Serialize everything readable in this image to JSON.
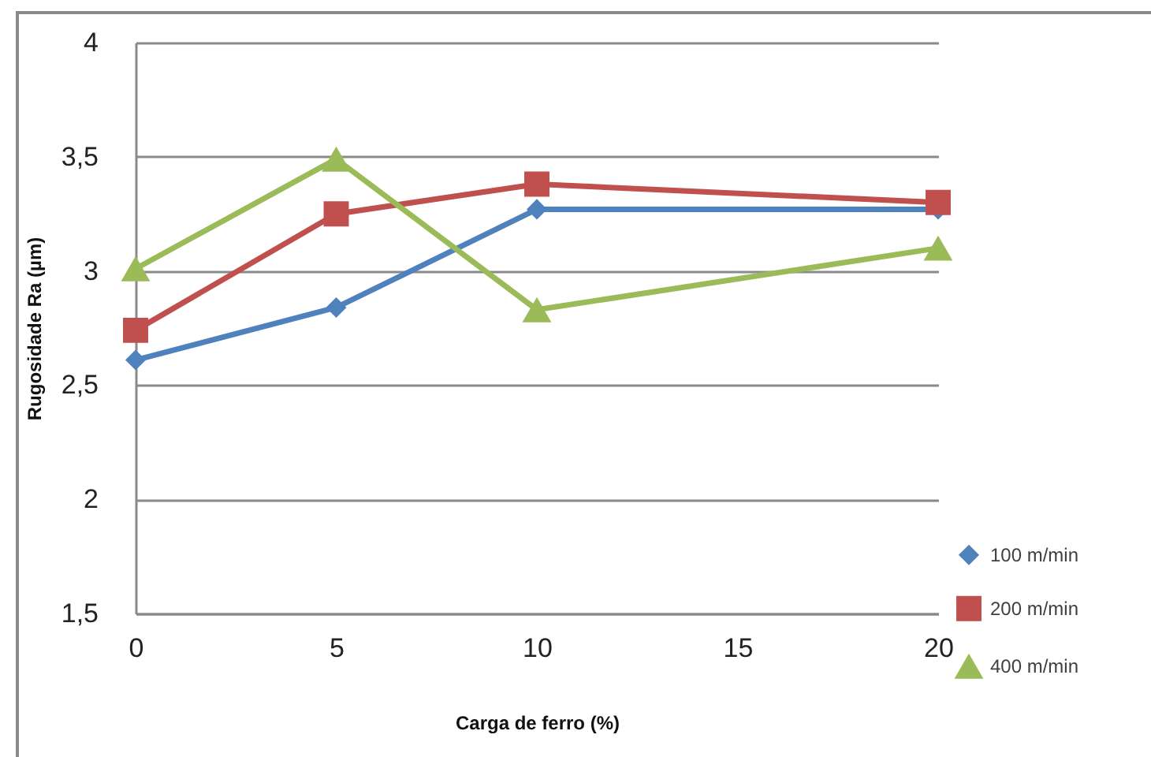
{
  "chart_data": {
    "type": "line",
    "xlabel": "Carga de ferro (%)",
    "ylabel": "Rugosidade Ra (µm)",
    "x": [
      0,
      5,
      10,
      20
    ],
    "xlim": [
      0,
      20
    ],
    "xticks": [
      0,
      5,
      10,
      15,
      20
    ],
    "ylim": [
      1.5,
      4
    ],
    "yticks": [
      {
        "value": 1.5,
        "label": "1,5"
      },
      2,
      {
        "value": 2.5,
        "label": "2,5"
      },
      3,
      {
        "value": 3.5,
        "label": "3,5"
      },
      4
    ],
    "grid": "y",
    "legend": "right",
    "series": [
      {
        "name": "100 m/min",
        "color": "#4f81bd",
        "marker": "diamond",
        "values": [
          2.61,
          2.84,
          3.27,
          3.27
        ]
      },
      {
        "name": "200 m/min",
        "color": "#c0504d",
        "marker": "square",
        "values": [
          2.74,
          3.25,
          3.38,
          3.3
        ]
      },
      {
        "name": "400 m/min",
        "color": "#9bbb59",
        "marker": "triangle",
        "values": [
          3.01,
          3.49,
          2.83,
          3.1
        ]
      }
    ]
  }
}
